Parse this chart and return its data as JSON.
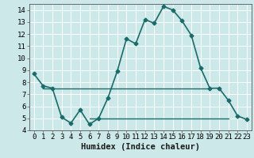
{
  "x": [
    0,
    1,
    2,
    3,
    4,
    5,
    6,
    7,
    8,
    9,
    10,
    11,
    12,
    13,
    14,
    15,
    16,
    17,
    18,
    19,
    20,
    21,
    22,
    23
  ],
  "y": [
    8.7,
    7.7,
    7.5,
    5.1,
    4.6,
    5.7,
    4.5,
    5.0,
    6.7,
    8.9,
    11.6,
    11.2,
    13.2,
    12.9,
    14.3,
    14.0,
    13.1,
    11.9,
    9.2,
    7.5,
    7.5,
    6.5,
    5.2,
    4.9
  ],
  "hline1_y": 7.5,
  "hline1_xstart": 1,
  "hline1_xend": 19,
  "hline2_y": 5.0,
  "hline2_xstart": 6,
  "hline2_xend": 21,
  "line_color": "#1a6b6b",
  "hline_color": "#1a6b6b",
  "bg_color": "#cce8e8",
  "grid_color": "#b8d8d8",
  "xlabel": "Humidex (Indice chaleur)",
  "ylim": [
    4,
    14.5
  ],
  "xlim": [
    -0.5,
    23.5
  ],
  "yticks": [
    4,
    5,
    6,
    7,
    8,
    9,
    10,
    11,
    12,
    13,
    14
  ],
  "xticks": [
    0,
    1,
    2,
    3,
    4,
    5,
    6,
    7,
    8,
    9,
    10,
    11,
    12,
    13,
    14,
    15,
    16,
    17,
    18,
    19,
    20,
    21,
    22,
    23
  ],
  "xtick_labels": [
    "0",
    "1",
    "2",
    "3",
    "4",
    "5",
    "6",
    "7",
    "8",
    "9",
    "10",
    "11",
    "12",
    "13",
    "14",
    "15",
    "16",
    "17",
    "18",
    "19",
    "20",
    "21",
    "22",
    "23"
  ],
  "marker": "D",
  "marker_size": 2.5,
  "line_width": 1.2,
  "tick_fontsize": 6.5,
  "xlabel_fontsize": 7.5
}
